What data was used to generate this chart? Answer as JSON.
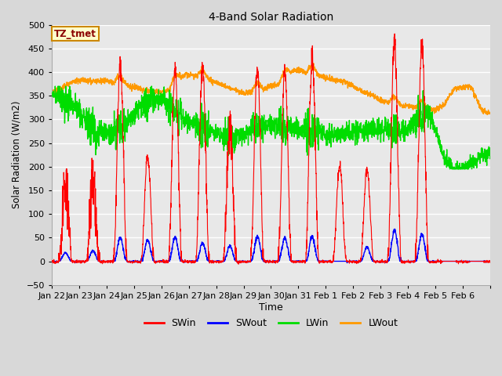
{
  "title": "4-Band Solar Radiation",
  "xlabel": "Time",
  "ylabel": "Solar Radiation (W/m2)",
  "ylim": [
    -50,
    500
  ],
  "bg_color": "#d8d8d8",
  "plot_bg_color": "#e8e8e8",
  "annotation_text": "TZ_tmet",
  "annotation_bg": "#ffffcc",
  "annotation_border": "#cc8800",
  "colors": {
    "SWin": "#ff0000",
    "SWout": "#0000ff",
    "LWin": "#00dd00",
    "LWout": "#ff9900"
  },
  "x_tick_labels": [
    "Jan 22",
    "Jan 23",
    "Jan 24",
    "Jan 25",
    "Jan 26",
    "Jan 27",
    "Jan 28",
    "Jan 29",
    "Jan 30",
    "Jan 31",
    "Feb 1",
    "Feb 2",
    "Feb 3",
    "Feb 4",
    "Feb 5",
    "Feb 6"
  ]
}
